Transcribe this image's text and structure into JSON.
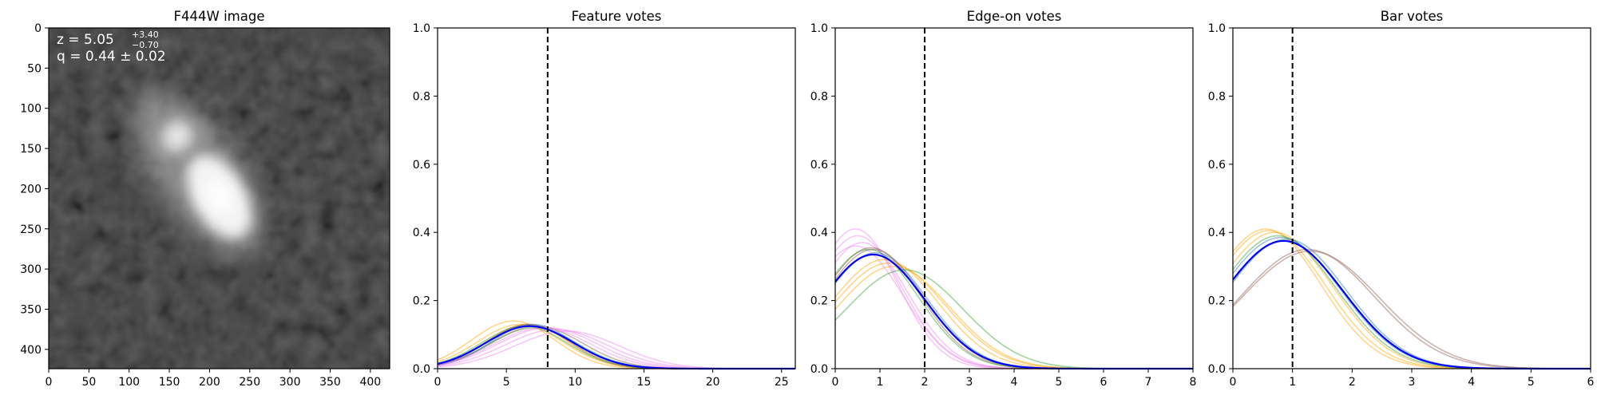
{
  "chart_data": [
    {
      "type": "image",
      "title": "F444W image",
      "xlim": [
        0,
        424
      ],
      "ylim": [
        424,
        0
      ],
      "xticks": [
        "0",
        "50",
        "100",
        "150",
        "200",
        "250",
        "300",
        "350",
        "400"
      ],
      "yticks": [
        "0",
        "50",
        "100",
        "150",
        "200",
        "250",
        "300",
        "350",
        "400"
      ],
      "annotations": {
        "z_main": "z = 5.05",
        "z_plus": "+3.40",
        "z_minus": "−0.70",
        "q_line": "q = 0.44 ± 0.02"
      },
      "sources": [
        {
          "x": 160,
          "y": 135,
          "brightness": 0.75,
          "sx": 14,
          "sy": 16,
          "angle": 40
        },
        {
          "x": 212,
          "y": 210,
          "brightness": 1.0,
          "sx": 22,
          "sy": 38,
          "angle": -30
        },
        {
          "x": 185,
          "y": 180,
          "brightness": 0.45,
          "sx": 35,
          "sy": 80,
          "angle": -35
        }
      ]
    },
    {
      "type": "line",
      "title": "Feature votes",
      "xlim": [
        0,
        26
      ],
      "ylim": [
        0,
        1.0
      ],
      "xticks": [
        "0",
        "5",
        "10",
        "15",
        "20",
        "25"
      ],
      "yticks": [
        "0.0",
        "0.2",
        "0.4",
        "0.6",
        "0.8",
        "1.0"
      ],
      "vline": 8,
      "main_curve": {
        "color": "#0000ff",
        "peak": 0.125,
        "mode": 6.7,
        "sigma": 3.2
      },
      "curves": [
        {
          "color": "#ffa500",
          "peak": 0.14,
          "mode": 5.5,
          "sigma": 3.0
        },
        {
          "color": "#ffa500",
          "peak": 0.13,
          "mode": 6.0,
          "sigma": 3.1
        },
        {
          "color": "#ffa500",
          "peak": 0.13,
          "mode": 6.5,
          "sigma": 3.0
        },
        {
          "color": "#2ca02c",
          "peak": 0.125,
          "mode": 6.3,
          "sigma": 3.1
        },
        {
          "color": "#2ca02c",
          "peak": 0.12,
          "mode": 7.0,
          "sigma": 3.2
        },
        {
          "color": "#8c564b",
          "peak": 0.13,
          "mode": 6.6,
          "sigma": 3.0
        },
        {
          "color": "#8c564b",
          "peak": 0.125,
          "mode": 7.2,
          "sigma": 3.3
        },
        {
          "color": "#1f77b4",
          "peak": 0.13,
          "mode": 6.9,
          "sigma": 3.0
        },
        {
          "color": "#ee82ee",
          "peak": 0.12,
          "mode": 8.0,
          "sigma": 3.6
        },
        {
          "color": "#ee82ee",
          "peak": 0.115,
          "mode": 8.6,
          "sigma": 3.7
        },
        {
          "color": "#ee82ee",
          "peak": 0.11,
          "mode": 9.4,
          "sigma": 3.8
        },
        {
          "color": "#ee82ee",
          "peak": 0.12,
          "mode": 7.6,
          "sigma": 3.5
        }
      ]
    },
    {
      "type": "line",
      "title": "Edge-on votes",
      "xlim": [
        0,
        8
      ],
      "ylim": [
        0,
        1.0
      ],
      "xticks": [
        "0",
        "1",
        "2",
        "3",
        "4",
        "5",
        "6",
        "7",
        "8"
      ],
      "yticks": [
        "0.0",
        "0.2",
        "0.4",
        "0.6",
        "0.8",
        "1.0"
      ],
      "vline": 2,
      "main_curve": {
        "color": "#0000ff",
        "peak": 0.335,
        "mode": 0.85,
        "sigma": 1.15
      },
      "curves": [
        {
          "color": "#ee82ee",
          "peak": 0.41,
          "mode": 0.45,
          "sigma": 0.95
        },
        {
          "color": "#ee82ee",
          "peak": 0.39,
          "mode": 0.5,
          "sigma": 1.0
        },
        {
          "color": "#ee82ee",
          "peak": 0.37,
          "mode": 0.6,
          "sigma": 1.02
        },
        {
          "color": "#ee82ee",
          "peak": 0.36,
          "mode": 0.45,
          "sigma": 1.05
        },
        {
          "color": "#8c564b",
          "peak": 0.355,
          "mode": 0.8,
          "sigma": 1.1
        },
        {
          "color": "#8c564b",
          "peak": 0.35,
          "mode": 0.85,
          "sigma": 1.12
        },
        {
          "color": "#2ca02c",
          "peak": 0.35,
          "mode": 0.75,
          "sigma": 1.1
        },
        {
          "color": "#1f77b4",
          "peak": 0.34,
          "mode": 0.9,
          "sigma": 1.15
        },
        {
          "color": "#ffa500",
          "peak": 0.32,
          "mode": 1.1,
          "sigma": 1.2
        },
        {
          "color": "#ffa500",
          "peak": 0.31,
          "mode": 1.2,
          "sigma": 1.25
        },
        {
          "color": "#ffa500",
          "peak": 0.3,
          "mode": 1.3,
          "sigma": 1.25
        },
        {
          "color": "#2ca02c",
          "peak": 0.29,
          "mode": 1.55,
          "sigma": 1.3
        }
      ]
    },
    {
      "type": "line",
      "title": "Bar votes",
      "xlim": [
        0,
        6
      ],
      "ylim": [
        0,
        1.0
      ],
      "xticks": [
        "0",
        "1",
        "2",
        "3",
        "4",
        "5",
        "6"
      ],
      "yticks": [
        "0.0",
        "0.2",
        "0.4",
        "0.6",
        "0.8",
        "1.0"
      ],
      "vline": 1,
      "main_curve": {
        "color": "#0000ff",
        "peak": 0.375,
        "mode": 0.85,
        "sigma": 1.0
      },
      "curves": [
        {
          "color": "#ffa500",
          "peak": 0.41,
          "mode": 0.55,
          "sigma": 0.92
        },
        {
          "color": "#ffa500",
          "peak": 0.405,
          "mode": 0.6,
          "sigma": 0.95
        },
        {
          "color": "#ffa500",
          "peak": 0.4,
          "mode": 0.7,
          "sigma": 0.97
        },
        {
          "color": "#2ca02c",
          "peak": 0.39,
          "mode": 0.75,
          "sigma": 0.98
        },
        {
          "color": "#1f77b4",
          "peak": 0.385,
          "mode": 0.8,
          "sigma": 1.0
        },
        {
          "color": "#1f77b4",
          "peak": 0.38,
          "mode": 0.9,
          "sigma": 1.0
        },
        {
          "color": "#8c564b",
          "peak": 0.35,
          "mode": 1.25,
          "sigma": 1.12
        },
        {
          "color": "#8c564b",
          "peak": 0.345,
          "mode": 1.3,
          "sigma": 1.15
        }
      ]
    }
  ]
}
